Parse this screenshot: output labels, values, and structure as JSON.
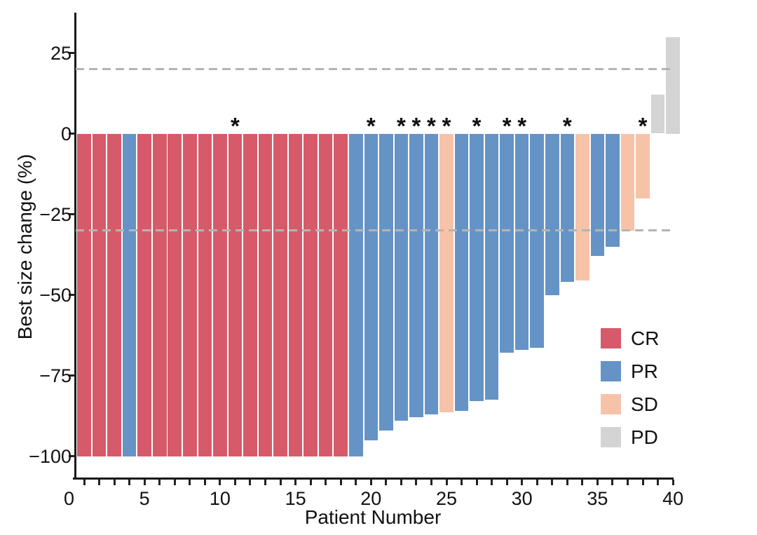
{
  "figure": {
    "title": "",
    "asterisk": "*",
    "y_axis": {
      "label": "Best size change (%)",
      "tick_labels": [
        "25",
        "0",
        "−25",
        "−50",
        "−75",
        "−100"
      ],
      "tick_values": [
        25,
        0,
        -25,
        -50,
        -75,
        -100
      ]
    },
    "x_axis": {
      "label": "Patient Number",
      "tick_labels": [
        "0",
        "5",
        "10",
        "15",
        "20",
        "25",
        "30",
        "35",
        "40"
      ],
      "tick_values": [
        0,
        5,
        10,
        15,
        20,
        25,
        30,
        35,
        40
      ],
      "minor_tick_every": 1,
      "minor_tick_range": [
        1,
        40
      ]
    },
    "legend": [
      {
        "label": "CR",
        "color": "#D75A6A"
      },
      {
        "label": "PR",
        "color": "#6593C5"
      },
      {
        "label": "SD",
        "color": "#F6C3A9"
      },
      {
        "label": "PD",
        "color": "#D4D4D4"
      }
    ],
    "reference_line_color": "#B4B4B4"
  },
  "chart_data": {
    "type": "bar",
    "subtype": "waterfall",
    "title": "",
    "xlabel": "Patient Number",
    "ylabel": "Best size change (%)",
    "xlim": [
      0,
      40.5
    ],
    "ylim": [
      -107,
      37
    ],
    "y_ticks": [
      25,
      0,
      -25,
      -50,
      -75,
      -100
    ],
    "x_major_ticks": [
      0,
      5,
      10,
      15,
      20,
      25,
      30,
      35,
      40
    ],
    "reference_lines_y": [
      20,
      -30
    ],
    "grid": false,
    "legend_position": "inside-right-lower",
    "categories_legend": [
      "CR",
      "PR",
      "SD",
      "PD"
    ],
    "flagged_patients": [
      11,
      20,
      22,
      23,
      24,
      25,
      27,
      29,
      30,
      33,
      38
    ],
    "patients": [
      {
        "n": 1,
        "value": -100,
        "response": "CR",
        "flag": false
      },
      {
        "n": 2,
        "value": -100,
        "response": "CR",
        "flag": false
      },
      {
        "n": 3,
        "value": -100,
        "response": "CR",
        "flag": false
      },
      {
        "n": 4,
        "value": -100,
        "response": "PR",
        "flag": false
      },
      {
        "n": 5,
        "value": -100,
        "response": "CR",
        "flag": false
      },
      {
        "n": 6,
        "value": -100,
        "response": "CR",
        "flag": false
      },
      {
        "n": 7,
        "value": -100,
        "response": "CR",
        "flag": false
      },
      {
        "n": 8,
        "value": -100,
        "response": "CR",
        "flag": false
      },
      {
        "n": 9,
        "value": -100,
        "response": "CR",
        "flag": false
      },
      {
        "n": 10,
        "value": -100,
        "response": "CR",
        "flag": false
      },
      {
        "n": 11,
        "value": -100,
        "response": "CR",
        "flag": true
      },
      {
        "n": 12,
        "value": -100,
        "response": "CR",
        "flag": false
      },
      {
        "n": 13,
        "value": -100,
        "response": "CR",
        "flag": false
      },
      {
        "n": 14,
        "value": -100,
        "response": "CR",
        "flag": false
      },
      {
        "n": 15,
        "value": -100,
        "response": "CR",
        "flag": false
      },
      {
        "n": 16,
        "value": -100,
        "response": "CR",
        "flag": false
      },
      {
        "n": 17,
        "value": -100,
        "response": "CR",
        "flag": false
      },
      {
        "n": 18,
        "value": -100,
        "response": "CR",
        "flag": false
      },
      {
        "n": 19,
        "value": -100,
        "response": "PR",
        "flag": false
      },
      {
        "n": 20,
        "value": -95,
        "response": "PR",
        "flag": true
      },
      {
        "n": 21,
        "value": -92,
        "response": "PR",
        "flag": false
      },
      {
        "n": 22,
        "value": -89,
        "response": "PR",
        "flag": true
      },
      {
        "n": 23,
        "value": -88,
        "response": "PR",
        "flag": true
      },
      {
        "n": 24,
        "value": -87,
        "response": "PR",
        "flag": true
      },
      {
        "n": 25,
        "value": -86.5,
        "response": "SD",
        "flag": true
      },
      {
        "n": 26,
        "value": -86,
        "response": "PR",
        "flag": false
      },
      {
        "n": 27,
        "value": -83,
        "response": "PR",
        "flag": true
      },
      {
        "n": 28,
        "value": -82.5,
        "response": "PR",
        "flag": false
      },
      {
        "n": 29,
        "value": -68,
        "response": "PR",
        "flag": true
      },
      {
        "n": 30,
        "value": -67,
        "response": "PR",
        "flag": true
      },
      {
        "n": 31,
        "value": -66.5,
        "response": "PR",
        "flag": false
      },
      {
        "n": 32,
        "value": -50,
        "response": "PR",
        "flag": false
      },
      {
        "n": 33,
        "value": -46,
        "response": "PR",
        "flag": true
      },
      {
        "n": 34,
        "value": -45.5,
        "response": "SD",
        "flag": false
      },
      {
        "n": 35,
        "value": -38,
        "response": "PR",
        "flag": false
      },
      {
        "n": 36,
        "value": -35,
        "response": "PR",
        "flag": false
      },
      {
        "n": 37,
        "value": -30,
        "response": "SD",
        "flag": false
      },
      {
        "n": 38,
        "value": -20,
        "response": "SD",
        "flag": true
      },
      {
        "n": 39,
        "value": 12,
        "response": "PD",
        "flag": false
      },
      {
        "n": 40,
        "value": 30,
        "response": "PD",
        "flag": false
      }
    ]
  }
}
